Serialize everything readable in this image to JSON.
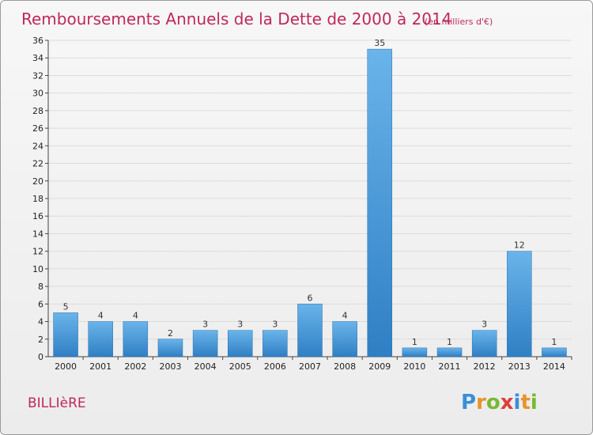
{
  "title": "Remboursements Annuels de la Dette de 2000 à 2014",
  "subtitle": "(en milliers d'€)",
  "commune": "BILLIèRE",
  "brand": {
    "letters": [
      "P",
      "r",
      "o",
      "x",
      "i",
      "t",
      "i"
    ],
    "colors": [
      "#3a8fd6",
      "#e8942a",
      "#7bb834",
      "#e03c3c",
      "#3a8fd6",
      "#e8942a",
      "#7bb834"
    ]
  },
  "colors": {
    "bar_light": "#6ab4ea",
    "bar_dark": "#2f7fc4",
    "accent": "#c0285a"
  },
  "chart_data": {
    "type": "bar",
    "categories": [
      "2000",
      "2001",
      "2002",
      "2003",
      "2004",
      "2005",
      "2006",
      "2007",
      "2008",
      "2009",
      "2010",
      "2011",
      "2012",
      "2013",
      "2014"
    ],
    "values": [
      5,
      4,
      4,
      2,
      3,
      3,
      3,
      6,
      4,
      35,
      1,
      1,
      3,
      12,
      1
    ],
    "ylim": [
      0,
      36
    ],
    "yticks": [
      0,
      2,
      4,
      6,
      8,
      10,
      12,
      14,
      16,
      18,
      20,
      22,
      24,
      26,
      28,
      30,
      32,
      34,
      36
    ],
    "grid": true,
    "legend": "none"
  }
}
